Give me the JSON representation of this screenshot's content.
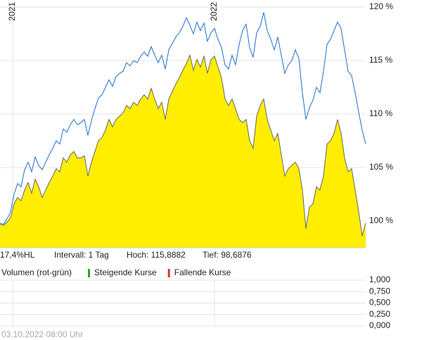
{
  "chart_data": [
    {
      "type": "area",
      "x": [
        0,
        1,
        2,
        3,
        4,
        5,
        6,
        7,
        8,
        9,
        10,
        11,
        12,
        13,
        14,
        15,
        16,
        17,
        18,
        19,
        20,
        21,
        22,
        23,
        24,
        25,
        26,
        27,
        28,
        29,
        30,
        31,
        32,
        33,
        34,
        35,
        36,
        37,
        38,
        39,
        40,
        41,
        42,
        43,
        44,
        45,
        46,
        47,
        48,
        49,
        50,
        51,
        52,
        53,
        54,
        55,
        56,
        57,
        58,
        59,
        60,
        61,
        62,
        63,
        64,
        65,
        66,
        67,
        68,
        69,
        70,
        71,
        72,
        73,
        74,
        75,
        76,
        77,
        78,
        79,
        80,
        81,
        82,
        83,
        84,
        85,
        86,
        87,
        88,
        89,
        90,
        91,
        92,
        93,
        94,
        95,
        96,
        97,
        98,
        99,
        100,
        101,
        102,
        103,
        104
      ],
      "series": [
        {
          "color": "#ffee00",
          "line_color": "#666666",
          "fill": true,
          "values": [
            99.7,
            99.6,
            99.9,
            100.3,
            101.6,
            102.2,
            101.9,
            102.9,
            103.6,
            102.6,
            103.9,
            103.2,
            102.2,
            102.9,
            103.6,
            104.2,
            104.9,
            104.6,
            105.9,
            105.5,
            106.2,
            106.5,
            105.9,
            105.9,
            106.1,
            104.2,
            105.5,
            106.5,
            107.5,
            107.8,
            108.5,
            109.5,
            108.8,
            109.5,
            109.8,
            110.1,
            110.8,
            110.5,
            111.1,
            110.8,
            111.4,
            111.8,
            111.4,
            112.4,
            111.4,
            110.5,
            111.1,
            109.5,
            111.4,
            112.1,
            112.8,
            113.4,
            114.1,
            114.7,
            115.5,
            114.1,
            115.1,
            114.4,
            115.4,
            113.8,
            115.1,
            115.4,
            114.4,
            113.4,
            111.4,
            110.8,
            111.4,
            110.5,
            109.5,
            109.2,
            109.5,
            107.5,
            106.8,
            109.8,
            110.8,
            111.4,
            109.5,
            108.5,
            107.5,
            108.2,
            106.2,
            104.2,
            104.9,
            105.2,
            105.5,
            104.9,
            102.9,
            99.3,
            101.3,
            101.6,
            103.2,
            102.9,
            104.2,
            107.2,
            107.5,
            108.2,
            109.5,
            108.2,
            105.9,
            104.6,
            104.9,
            102.9,
            100.9,
            98.6,
            99.8
          ]
        },
        {
          "color": "#1f6fd0",
          "fill": false,
          "values": [
            99.8,
            99.7,
            100.2,
            100.8,
            102.5,
            103.5,
            103.2,
            104.8,
            105.5,
            104.6,
            106.0,
            105.2,
            104.8,
            105.5,
            106.2,
            106.8,
            107.5,
            107.2,
            108.6,
            108.3,
            109.0,
            109.5,
            109.0,
            109.2,
            109.5,
            108.0,
            109.4,
            110.5,
            111.5,
            111.8,
            112.5,
            113.2,
            112.6,
            113.5,
            113.8,
            114.0,
            114.8,
            114.5,
            115.0,
            114.8,
            115.4,
            115.8,
            115.4,
            116.3,
            115.5,
            114.8,
            115.5,
            114.2,
            116.0,
            116.6,
            117.2,
            117.6,
            118.2,
            119.0,
            118.3,
            117.5,
            118.6,
            117.8,
            118.5,
            116.8,
            117.6,
            118.0,
            117.0,
            116.2,
            114.6,
            114.2,
            115.5,
            114.6,
            116.5,
            117.8,
            118.4,
            116.2,
            115.3,
            117.6,
            118.2,
            119.5,
            117.8,
            117.0,
            116.0,
            117.2,
            115.5,
            113.8,
            114.6,
            115.0,
            116.0,
            115.2,
            112.0,
            109.5,
            110.6,
            111.3,
            112.5,
            112.0,
            114.0,
            116.5,
            117.0,
            117.8,
            118.6,
            118.0,
            116.0,
            114.0,
            113.6,
            112.0,
            110.2,
            108.5,
            107.2
          ]
        }
      ],
      "xlim": [
        0,
        104
      ],
      "xticks": [
        {
          "value": 3.6,
          "label": "2021"
        },
        {
          "value": 61,
          "label": "2022"
        }
      ],
      "ylim": [
        97.5,
        120.66
      ],
      "yticks": [
        {
          "value": 100,
          "label": "100 %"
        },
        {
          "value": 105,
          "label": "105 %"
        },
        {
          "value": 110,
          "label": "110 %"
        },
        {
          "value": 115,
          "label": "115 %"
        },
        {
          "value": 120,
          "label": "120 %"
        }
      ],
      "grid": true,
      "info": [
        "17,4%HL",
        "Intervall: 1 Tag",
        "Hoch: 115,8882",
        "Tief: 98,6876"
      ]
    },
    {
      "type": "bar",
      "title": "Volumen (rot-grün)",
      "legend": [
        {
          "name": "Steigende Kurse",
          "color": "#22aa22"
        },
        {
          "name": "Fallende Kurse",
          "color": "#dd3333"
        }
      ],
      "ylim": [
        0,
        1
      ],
      "yticks": [
        {
          "value": 1,
          "label": "1,000"
        },
        {
          "value": 0.75,
          "label": "0,750"
        },
        {
          "value": 0.5,
          "label": "0,500"
        },
        {
          "value": 0.25,
          "label": "0,250"
        },
        {
          "value": 0,
          "label": "0,000"
        }
      ],
      "grid": true
    }
  ],
  "footer": "03.10.2022 08:00 Uhr"
}
